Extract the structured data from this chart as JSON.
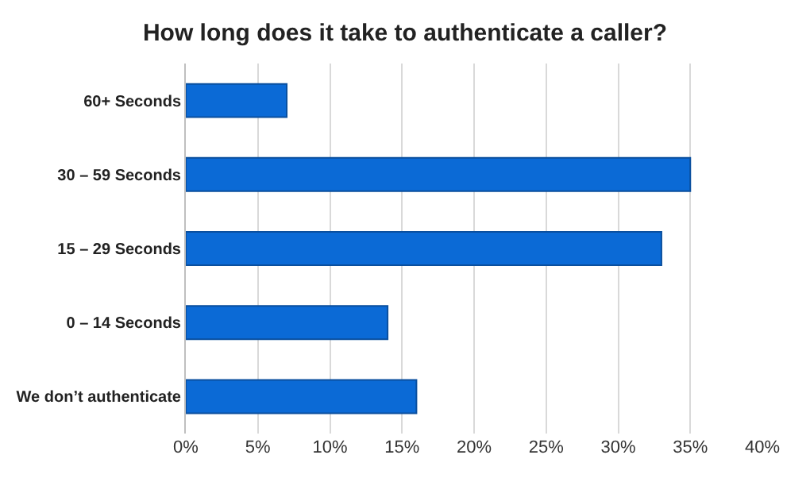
{
  "chart_data": {
    "type": "bar",
    "orientation": "horizontal",
    "title": "How long does it take to authenticate a caller?",
    "categories": [
      "60+ Seconds",
      "30 – 59 Seconds",
      "15 – 29 Seconds",
      "0 – 14 Seconds",
      "We don’t authenticate"
    ],
    "values": [
      7,
      35,
      33,
      14,
      16
    ],
    "color": "#0b6ad6",
    "xlim": [
      0,
      40
    ],
    "xticks": [
      {
        "value": 0,
        "label": "0%"
      },
      {
        "value": 5,
        "label": "5%"
      },
      {
        "value": 10,
        "label": "10%"
      },
      {
        "value": 15,
        "label": "15%"
      },
      {
        "value": 20,
        "label": "20%"
      },
      {
        "value": 25,
        "label": "25%"
      },
      {
        "value": 30,
        "label": "30%"
      },
      {
        "value": 35,
        "label": "35%"
      },
      {
        "value": 40,
        "label": "40%"
      }
    ],
    "grid": "x"
  }
}
